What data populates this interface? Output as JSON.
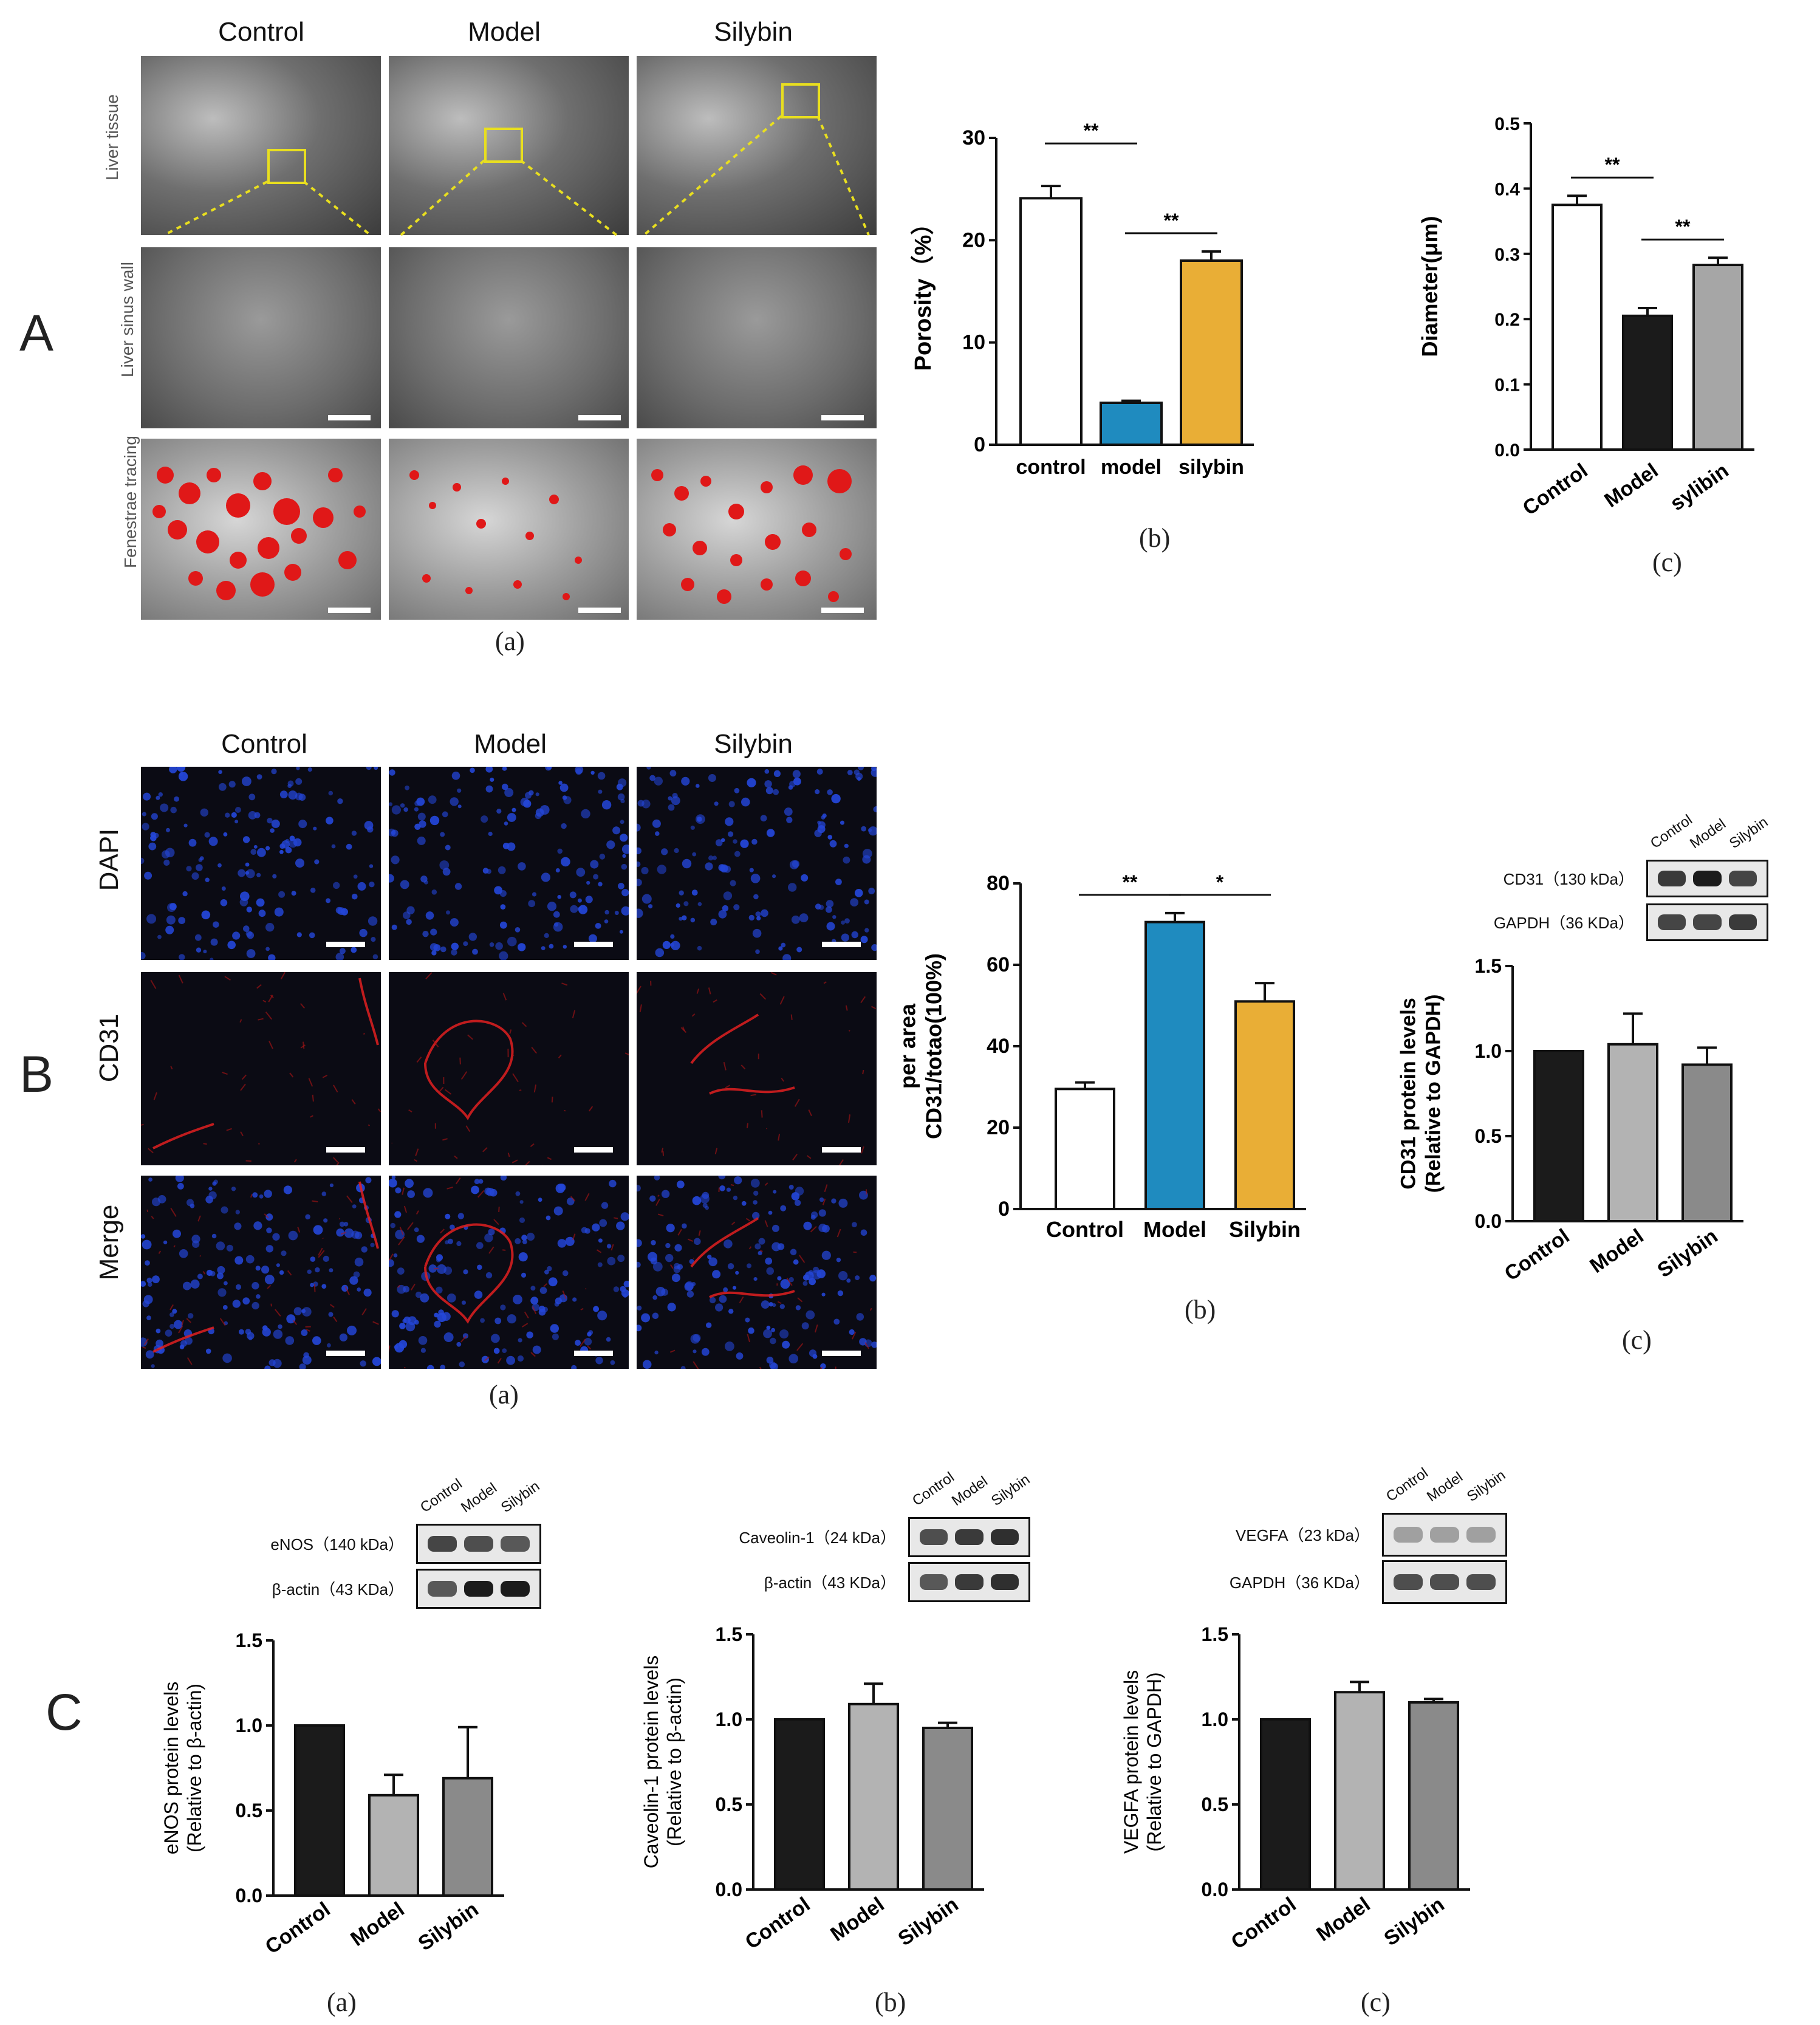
{
  "panels": {
    "A": {
      "letter": "A",
      "columns": [
        "Control",
        "Model",
        "Silybin"
      ],
      "rows": [
        "Liver tissue",
        "Liver sinus wall",
        "Fenestrae tracing"
      ],
      "sub_a": "(a)",
      "sub_b": "(b)",
      "sub_c": "(c)"
    },
    "B": {
      "letter": "B",
      "columns": [
        "Control",
        "Model",
        "Silybin"
      ],
      "rows": [
        "DAPI",
        "CD31",
        "Merge"
      ],
      "sub_a": "(a)",
      "sub_b": "(b)",
      "sub_c": "(c)",
      "blot": {
        "lanes": [
          "Control",
          "Model",
          "Silybin"
        ],
        "rows": [
          "CD31（130 kDa）",
          "GAPDH（36 KDa）"
        ]
      }
    },
    "C": {
      "letter": "C",
      "sub_a": "(a)",
      "sub_b": "(b)",
      "sub_c": "(c)",
      "blot_a": {
        "lanes": [
          "Control",
          "Model",
          "Silybin"
        ],
        "rows": [
          "eNOS（140 kDa）",
          "β-actin（43 KDa）"
        ]
      },
      "blot_b": {
        "lanes": [
          "Control",
          "Model",
          "Silybin"
        ],
        "rows": [
          "Caveolin-1（24 kDa）",
          "β-actin（43 KDa）"
        ]
      },
      "blot_c": {
        "lanes": [
          "Control",
          "Model",
          "Silybin"
        ],
        "rows": [
          "VEGFA（23 kDa）",
          "GAPDH（36 KDa）"
        ]
      }
    }
  },
  "chart_data": [
    {
      "id": "A-b",
      "type": "bar",
      "categories": [
        "control",
        "model",
        "silybin"
      ],
      "values": [
        24.1,
        4.1,
        18.0
      ],
      "errors": [
        1.2,
        0.2,
        0.9
      ],
      "colors": [
        "#ffffff",
        "#1f8bbf",
        "#e9ae36"
      ],
      "ylabel": "Porosity（%）",
      "ylim": [
        0,
        30
      ],
      "yticks": [
        "0",
        "10",
        "20",
        "30"
      ],
      "significance": [
        "**",
        "**"
      ],
      "bold_ticks": true
    },
    {
      "id": "A-c",
      "type": "bar",
      "categories": [
        "Control",
        "Model",
        "sylibin"
      ],
      "values": [
        0.375,
        0.205,
        0.283
      ],
      "errors": [
        0.014,
        0.012,
        0.011
      ],
      "colors": [
        "#ffffff",
        "#1b1b1b",
        "#a6a6a6"
      ],
      "ylabel": "Diameter(μm)",
      "ylim": [
        0,
        0.5
      ],
      "yticks": [
        "0.0",
        "0.1",
        "0.2",
        "0.3",
        "0.4",
        "0.5"
      ],
      "significance": [
        "**",
        "**"
      ],
      "rotated_categories": true
    },
    {
      "id": "B-b",
      "type": "bar",
      "categories": [
        "Control",
        "Model",
        "Silybin"
      ],
      "values": [
        29.5,
        70.5,
        51.0
      ],
      "errors": [
        1.6,
        2.2,
        4.5
      ],
      "colors": [
        "#ffffff",
        "#1f8bbf",
        "#e9ae36"
      ],
      "ylabel_line1": "per area",
      "ylabel_line2": "CD31/totao(100%)",
      "ylim": [
        0,
        80
      ],
      "yticks": [
        "0",
        "20",
        "40",
        "60",
        "80"
      ],
      "significance": [
        "**",
        "*"
      ]
    },
    {
      "id": "B-c",
      "type": "bar",
      "categories": [
        "Control",
        "Model",
        "Silybin"
      ],
      "values": [
        1.0,
        1.04,
        0.92
      ],
      "errors": [
        0.0,
        0.18,
        0.1
      ],
      "colors": [
        "#1b1b1b",
        "#b3b3b3",
        "#8a8a8a"
      ],
      "ylabel_line1": "CD31 protein levels",
      "ylabel_line2": "(Relative to GAPDH)",
      "ylim": [
        0,
        1.5
      ],
      "yticks": [
        "0.0",
        "0.5",
        "1.0",
        "1.5"
      ],
      "rotated_categories": true
    },
    {
      "id": "C-a",
      "type": "bar",
      "categories": [
        "Control",
        "Model",
        "Silybin"
      ],
      "values": [
        1.0,
        0.59,
        0.69
      ],
      "errors": [
        0.0,
        0.12,
        0.3
      ],
      "colors": [
        "#1b1b1b",
        "#b3b3b3",
        "#8a8a8a"
      ],
      "ylabel_line1": "eNOS protein levels",
      "ylabel_line2": "(Relative to β-actin)",
      "ylim": [
        0,
        1.5
      ],
      "yticks": [
        "0.0",
        "0.5",
        "1.0",
        "1.5"
      ],
      "rotated_categories": true
    },
    {
      "id": "C-b",
      "type": "bar",
      "categories": [
        "Control",
        "Model",
        "Silybin"
      ],
      "values": [
        1.0,
        1.09,
        0.95
      ],
      "errors": [
        0.0,
        0.12,
        0.03
      ],
      "colors": [
        "#1b1b1b",
        "#b3b3b3",
        "#8a8a8a"
      ],
      "ylabel_line1": "Caveolin-1 protein levels",
      "ylabel_line2": "(Relative to β-actin)",
      "ylim": [
        0,
        1.5
      ],
      "yticks": [
        "0.0",
        "0.5",
        "1.0",
        "1.5"
      ],
      "rotated_categories": true
    },
    {
      "id": "C-c",
      "type": "bar",
      "categories": [
        "Control",
        "Model",
        "Silybin"
      ],
      "values": [
        1.0,
        1.16,
        1.1
      ],
      "errors": [
        0.0,
        0.06,
        0.02
      ],
      "colors": [
        "#1b1b1b",
        "#b3b3b3",
        "#8a8a8a"
      ],
      "ylabel_line1": "VEGFA protein levels",
      "ylabel_line2": "(Relative to GAPDH)",
      "ylim": [
        0,
        1.5
      ],
      "yticks": [
        "0.0",
        "0.5",
        "1.0",
        "1.5"
      ],
      "rotated_categories": true
    }
  ]
}
